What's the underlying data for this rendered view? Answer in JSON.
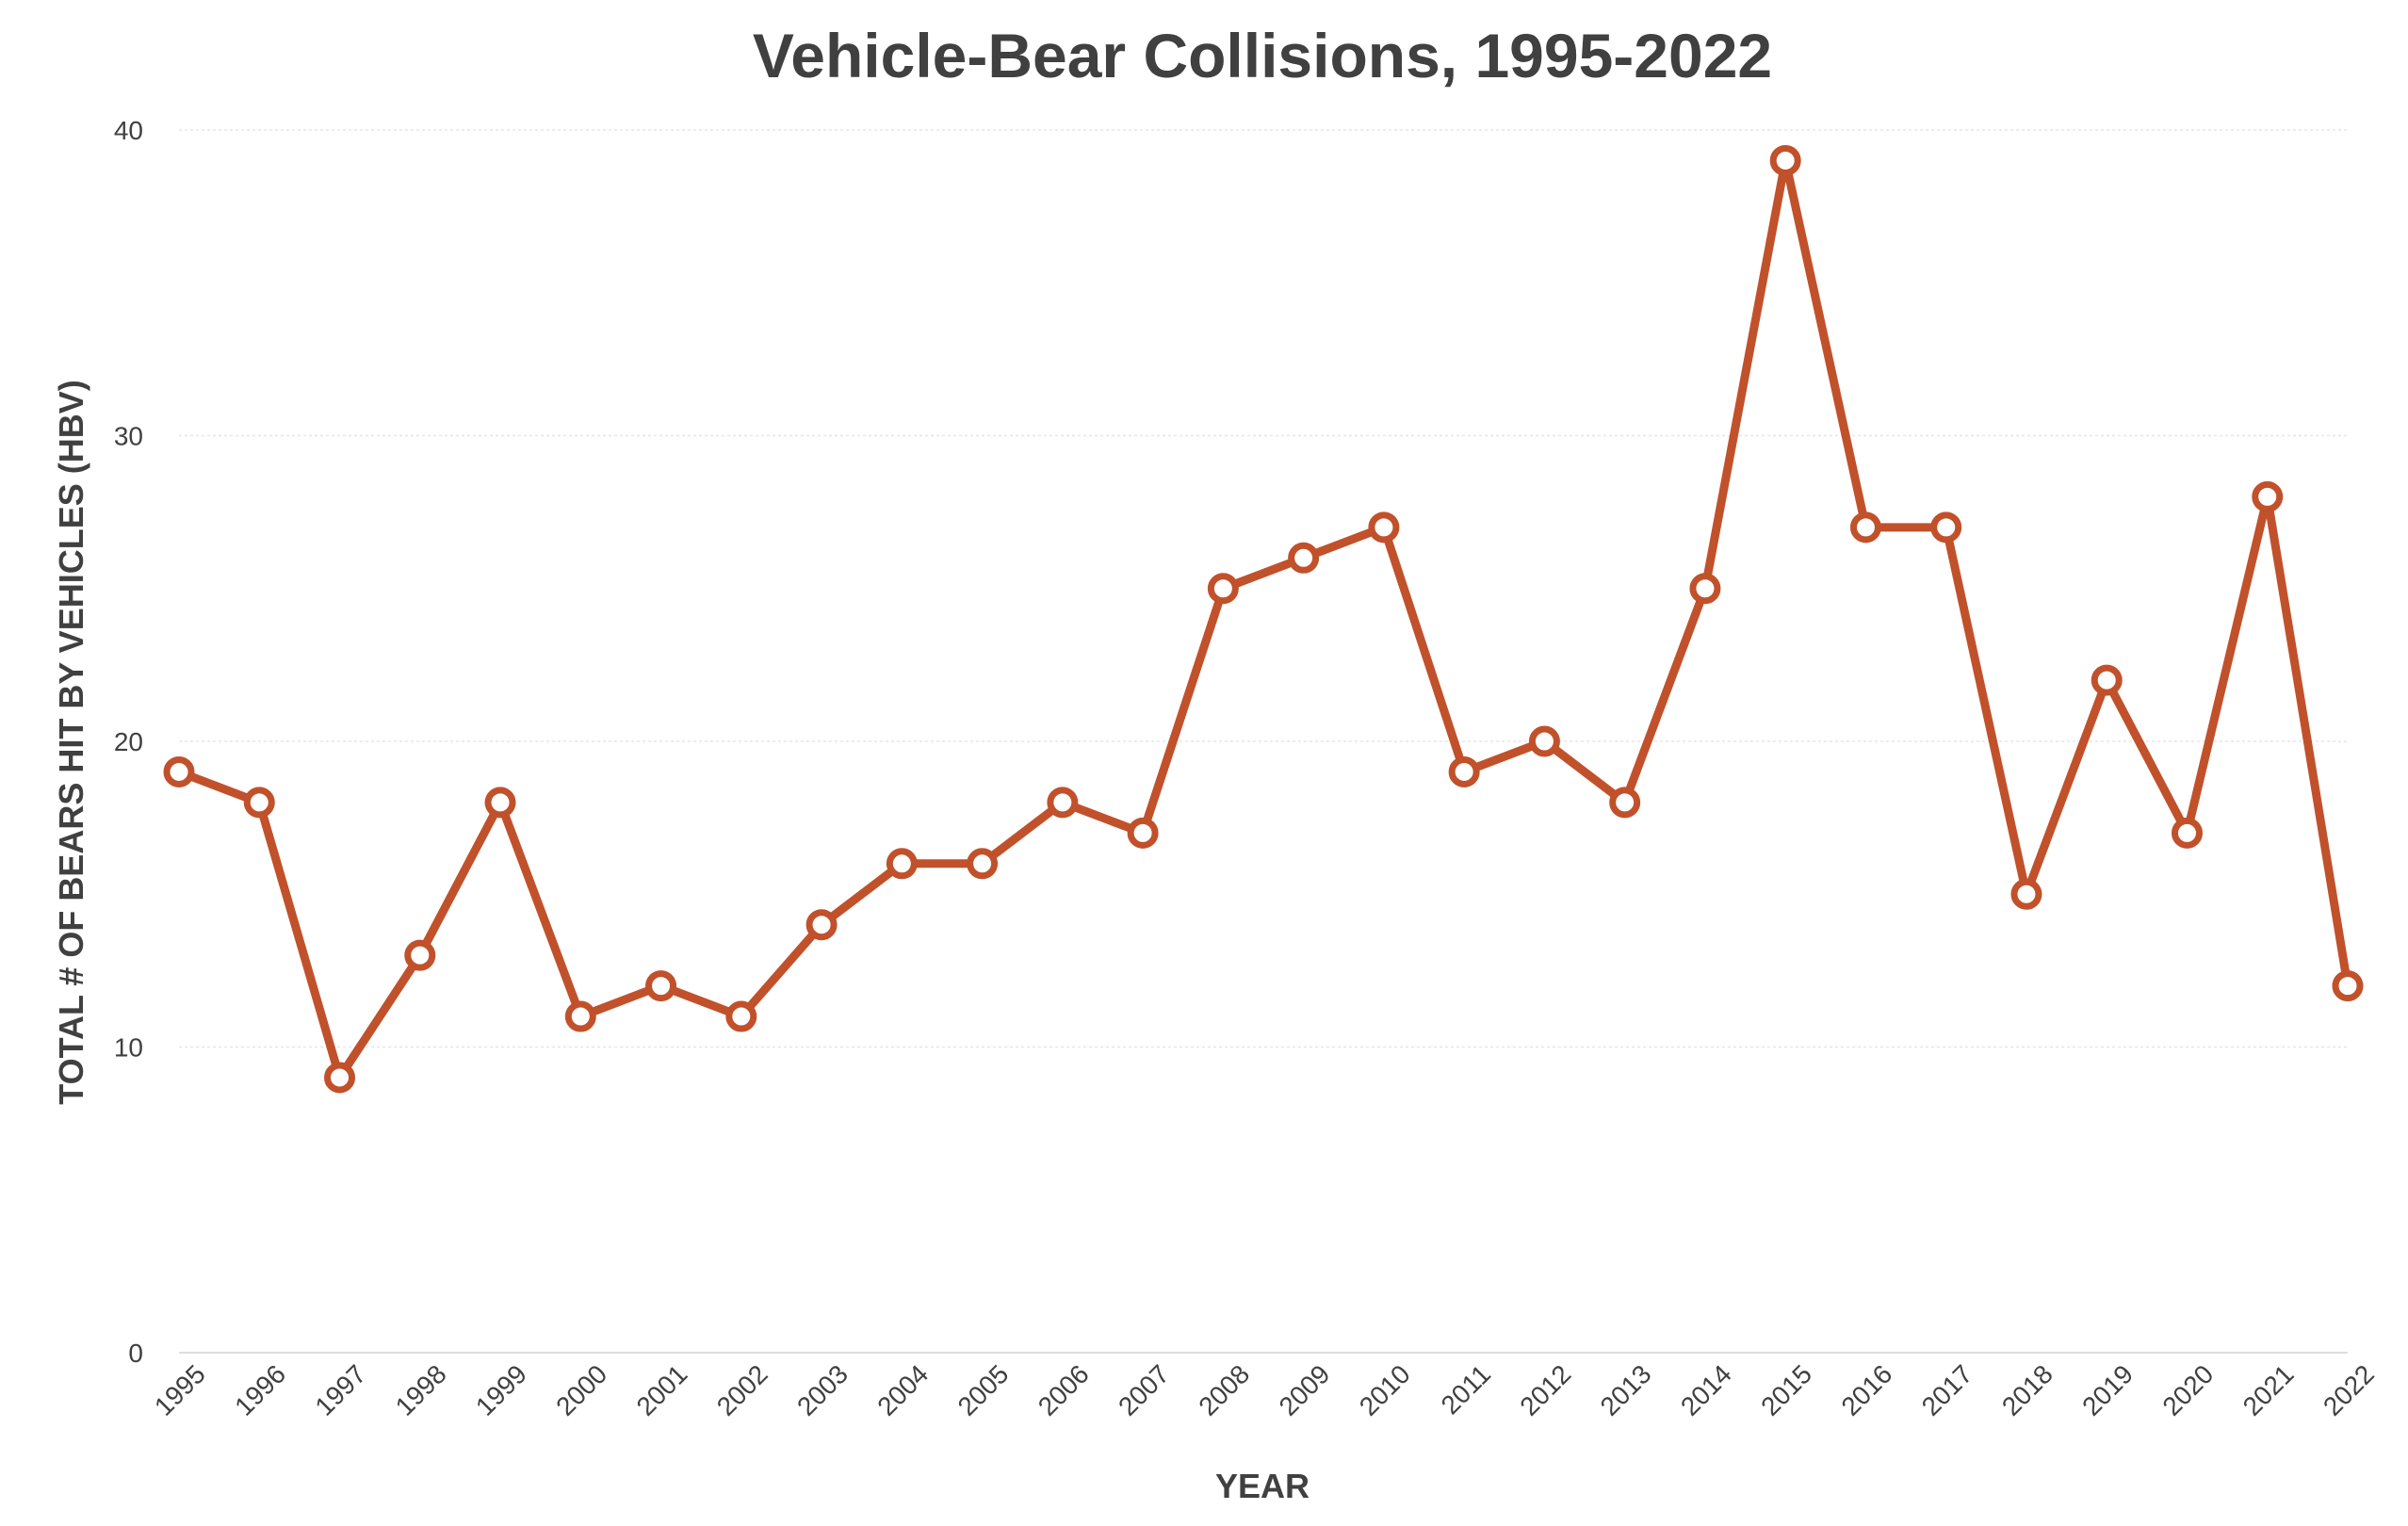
{
  "chart_data": {
    "type": "line",
    "title": "Vehicle-Bear Collisions, 1995-2022",
    "xlabel": "YEAR",
    "ylabel": "TOTAL # OF BEARS HIT BY VEHICLES  (HBV)",
    "x": [
      "1995",
      "1996",
      "1997",
      "1998",
      "1999",
      "2000",
      "2001",
      "2002",
      "2003",
      "2004",
      "2005",
      "2006",
      "2007",
      "2008",
      "2009",
      "2010",
      "2011",
      "2012",
      "2013",
      "2014",
      "2015",
      "2016",
      "2017",
      "2018",
      "2019",
      "2020",
      "2021",
      "2022"
    ],
    "series": [
      {
        "values": [
          19,
          18,
          9,
          13,
          18,
          11,
          12,
          11,
          14,
          16,
          16,
          18,
          17,
          25,
          26,
          27,
          19,
          20,
          18,
          25,
          39,
          27,
          27,
          15,
          22,
          17,
          28,
          12
        ],
        "color": "#c1512b"
      }
    ],
    "ylim": [
      0,
      40
    ],
    "yticks": [
      0,
      10,
      20,
      30,
      40
    ],
    "grid": true,
    "legend": "none"
  }
}
